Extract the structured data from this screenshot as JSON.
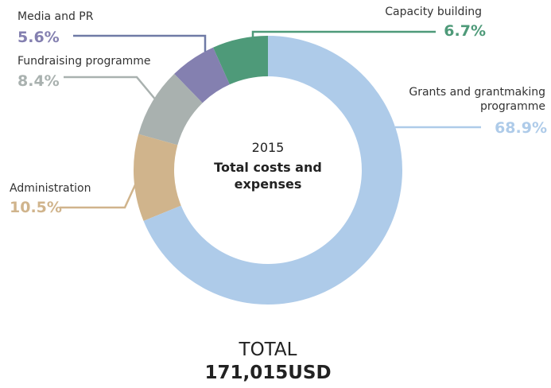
{
  "chart_data": {
    "type": "donut",
    "categories": [
      "Grants and grantmaking programme",
      "Administration",
      "Fundraising programme",
      "Media and PR",
      "Capacity building"
    ],
    "values": [
      68.9,
      10.5,
      8.4,
      5.6,
      6.7
    ],
    "value_labels": [
      "68.9%",
      "10.5%",
      "8.4%",
      "5.6%",
      "6.7%"
    ],
    "colors": [
      "#aecbe9",
      "#d0b48c",
      "#a9b1af",
      "#8480b0",
      "#4e9a79"
    ],
    "center_year": "2015",
    "center_label": "Total costs and expenses",
    "total_label": "TOTAL",
    "total_value": "171,015USD"
  }
}
